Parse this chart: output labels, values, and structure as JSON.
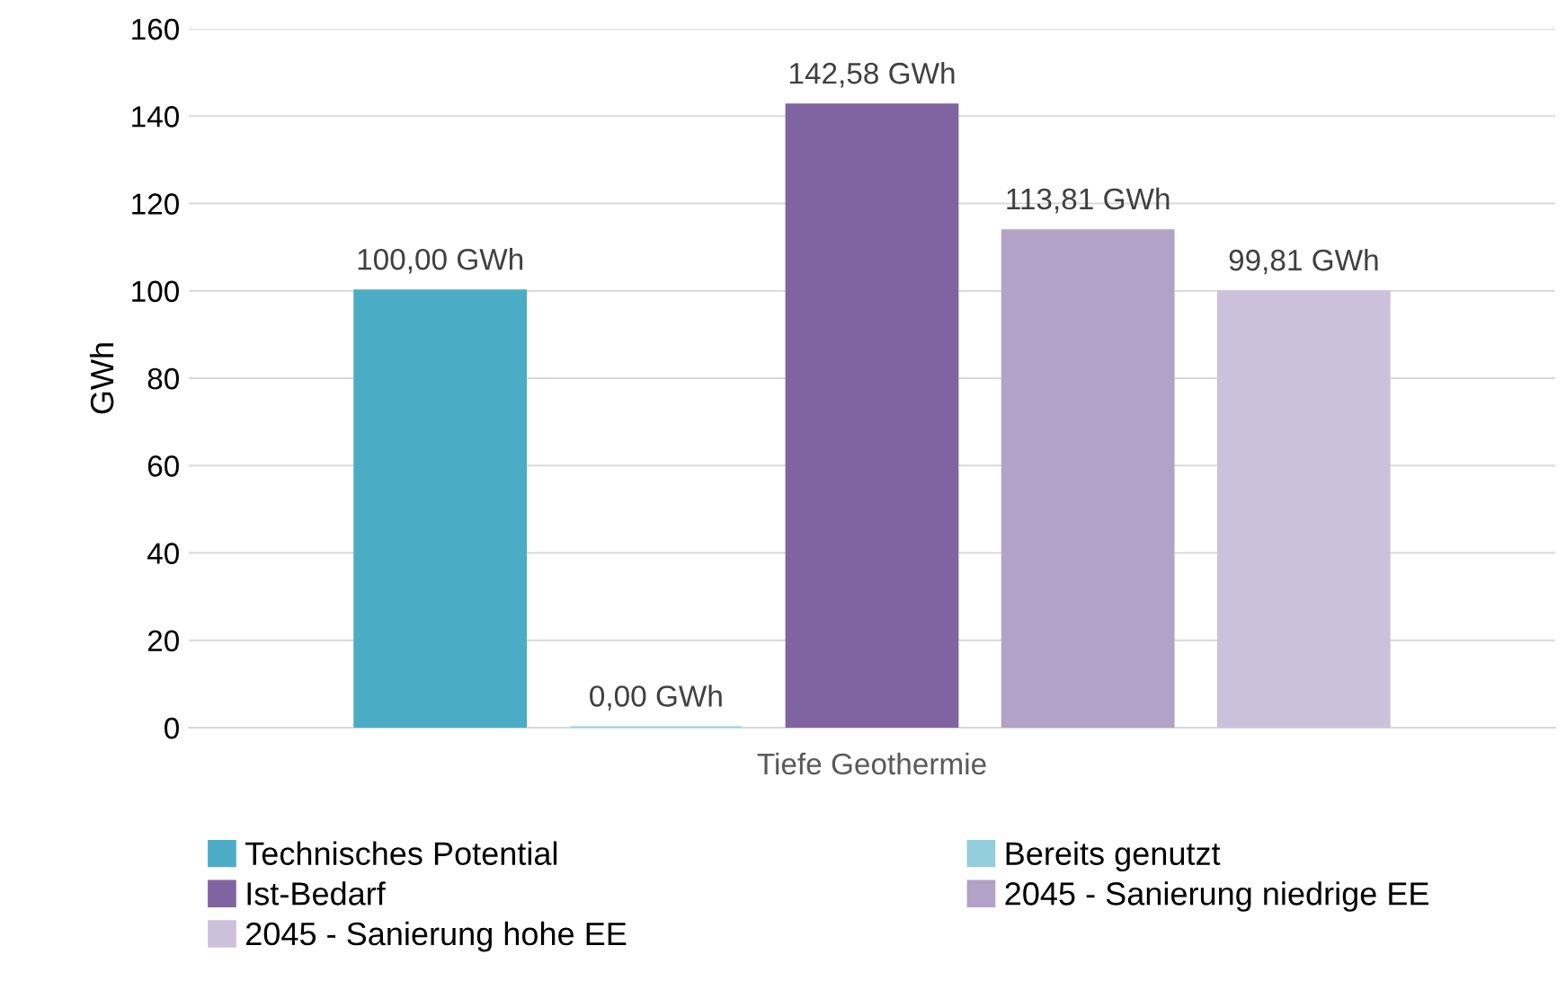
{
  "chart_data": {
    "type": "bar",
    "ylabel": "GWh",
    "categories": [
      "Tiefe Geothermie"
    ],
    "series": [
      {
        "name": "Technisches Potential",
        "color": "#4bacc6",
        "values": [
          100.0
        ],
        "value_labels": [
          "100,00 GWh"
        ]
      },
      {
        "name": "Bereits genutzt",
        "color": "#92cddc",
        "values": [
          0.0
        ],
        "value_labels": [
          "0,00 GWh"
        ]
      },
      {
        "name": "Ist-Bedarf",
        "color": "#8064a2",
        "values": [
          142.58
        ],
        "value_labels": [
          "142,58 GWh"
        ]
      },
      {
        "name": "2045 - Sanierung niedrige EE",
        "color": "#b3a2c7",
        "values": [
          113.81
        ],
        "value_labels": [
          "113,81 GWh"
        ]
      },
      {
        "name": "2045 - Sanierung hohe EE",
        "color": "#ccc1da",
        "values": [
          99.81
        ],
        "value_labels": [
          "99,81 GWh"
        ]
      }
    ],
    "ylim": [
      0,
      160
    ],
    "yticks": [
      0,
      20,
      40,
      60,
      80,
      100,
      120,
      140,
      160
    ],
    "grid": "y",
    "legend": "bottom"
  }
}
